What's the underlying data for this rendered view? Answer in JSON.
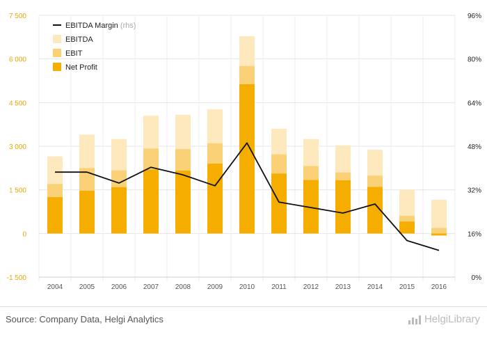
{
  "chart_data": {
    "type": "bar",
    "categories": [
      "2004",
      "2005",
      "2006",
      "2007",
      "2008",
      "2009",
      "2010",
      "2011",
      "2012",
      "2013",
      "2014",
      "2015",
      "2016"
    ],
    "series": [
      {
        "name": "EBITDA",
        "kind": "bar",
        "axis": "left",
        "color": "#fde9bd",
        "values": [
          2650,
          3400,
          3250,
          4050,
          4080,
          4270,
          6780,
          3600,
          3250,
          3030,
          2880,
          1500,
          1160
        ]
      },
      {
        "name": "EBIT",
        "kind": "bar",
        "axis": "left",
        "color": "#fbd178",
        "values": [
          1700,
          2250,
          2170,
          2920,
          2900,
          3100,
          5760,
          2720,
          2320,
          2100,
          1990,
          610,
          190
        ]
      },
      {
        "name": "Net Profit",
        "kind": "bar",
        "axis": "left",
        "color": "#f5ad00",
        "values": [
          1250,
          1470,
          1590,
          2200,
          2160,
          2400,
          5130,
          2060,
          1840,
          1830,
          1600,
          410,
          -70
        ]
      },
      {
        "name": "EBITDA Margin",
        "label_suffix": "(rhs)",
        "kind": "line",
        "axis": "right",
        "color": "#111111",
        "values": [
          38.5,
          38.5,
          34.5,
          40.3,
          37.5,
          33.5,
          49.2,
          27.5,
          25.5,
          23.5,
          26.8,
          13.4,
          9.8
        ]
      }
    ],
    "y_left": {
      "ylim": [
        -1500,
        7500
      ],
      "ticks": [
        -1500,
        0,
        1500,
        3000,
        4500,
        6000,
        7500
      ],
      "tick_labels": [
        "-1 500",
        "0",
        "1 500",
        "3 000",
        "4 500",
        "6 000",
        "7 500"
      ]
    },
    "y_right": {
      "ylim": [
        0,
        96
      ],
      "ticks": [
        0,
        16,
        32,
        48,
        64,
        80,
        96
      ],
      "tick_labels": [
        "0%",
        "16%",
        "32%",
        "48%",
        "64%",
        "80%",
        "96%"
      ]
    },
    "grid": true,
    "legend": "top-left",
    "title": "",
    "xlabel": "",
    "ylabel": ""
  },
  "footer": {
    "source": "Source: Company Data, Helgi Analytics",
    "brand": "HelgiLibrary",
    "brand_icon": "bar-chart-icon"
  }
}
